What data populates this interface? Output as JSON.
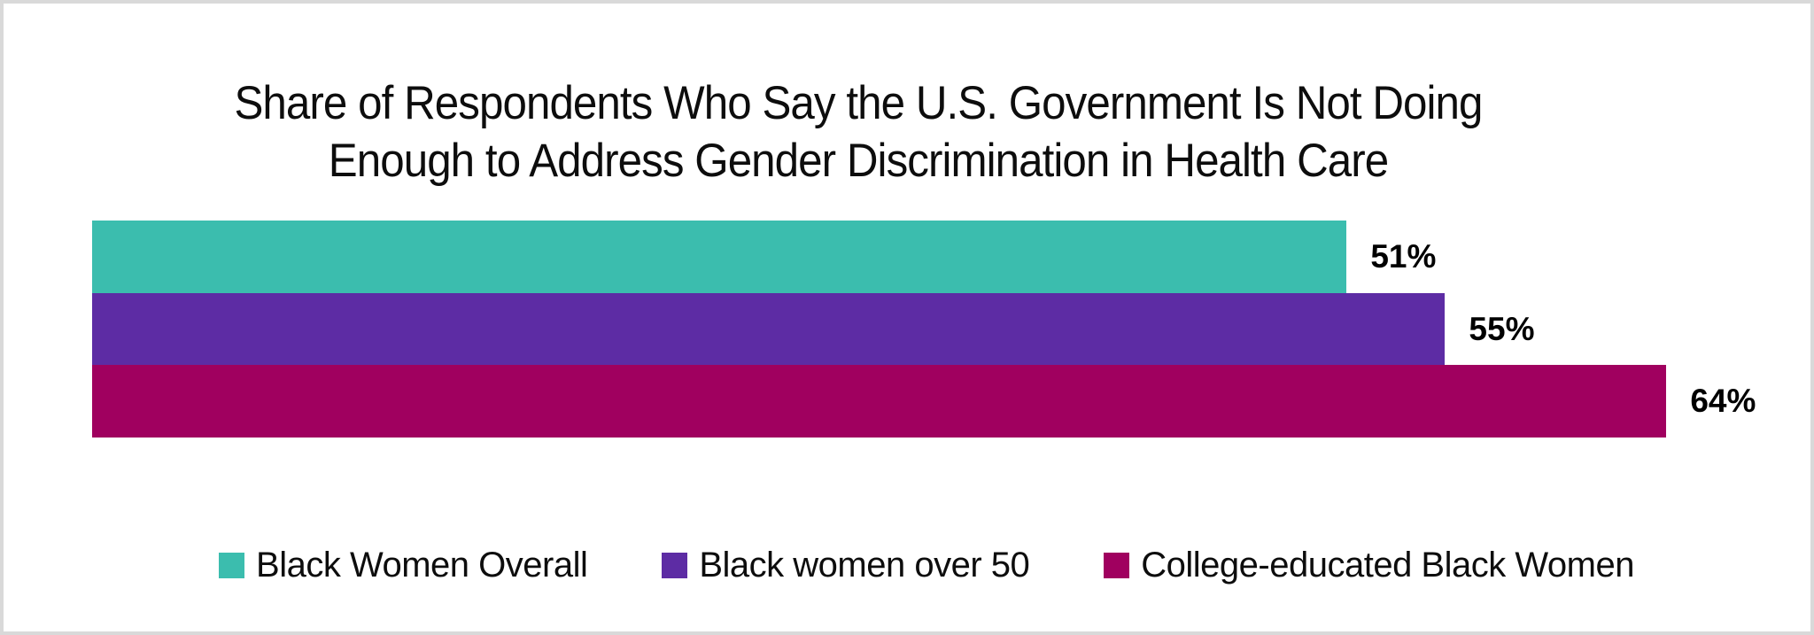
{
  "frame": {
    "background": "#FFFFFF",
    "border_color": "#D9D9D9"
  },
  "chart_data": {
    "type": "bar",
    "orientation": "horizontal",
    "title": "Share of Respondents Who Say the U.S. Government Is Not Doing Enough to Address Gender Discrimination in Health Care",
    "title_lines": [
      "Share of Respondents Who Say the U.S. Government Is Not Doing",
      "Enough to Address Gender Discrimination in Health Care"
    ],
    "series": [
      {
        "name": "Black Women Overall",
        "value": 51,
        "data_label": "51%",
        "color": "#3BBDAE"
      },
      {
        "name": "Black women over 50",
        "value": 55,
        "data_label": "55%",
        "color": "#5D2CA4"
      },
      {
        "name": "College-educated Black Women",
        "value": 64,
        "data_label": "64%",
        "color": "#A0005F"
      }
    ],
    "value_axis": {
      "min": 0,
      "max": 70,
      "unit": "%",
      "visible": false
    },
    "category_axis_visible": false,
    "grid": false,
    "data_labels": true,
    "data_label_color": "#000000",
    "legend_position": "bottom",
    "text_color": "#0D0D0D"
  }
}
